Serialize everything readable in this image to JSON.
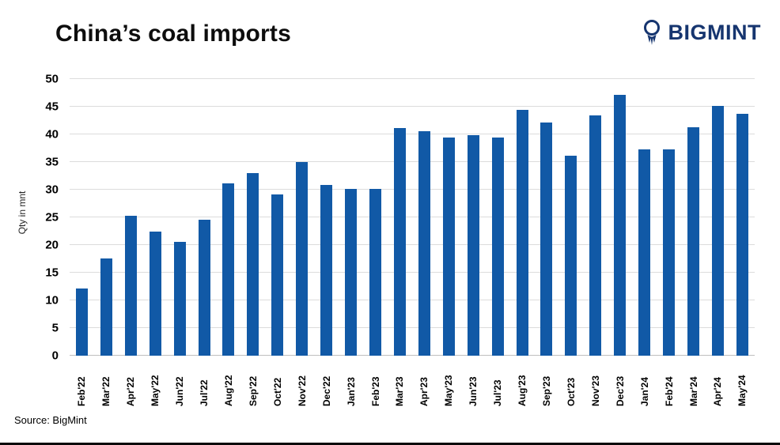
{
  "header": {
    "title": "China’s coal imports",
    "logo_text": "BIGMINT",
    "logo_color": "#16356F"
  },
  "footer": {
    "source": "Source: BigMint"
  },
  "chart_data": {
    "type": "bar",
    "title": "China’s coal imports",
    "xlabel": "",
    "ylabel": "Qty in mnt",
    "ylim": [
      0,
      50
    ],
    "ytick_step": 5,
    "grid": true,
    "legend": false,
    "bar_color": "#1159A6",
    "categories": [
      "Feb'22",
      "Mar'22",
      "Apr'22",
      "May'22",
      "Jun'22",
      "Jul'22",
      "Aug'22",
      "Sep'22",
      "Oct'22",
      "Nov'22",
      "Dec'22",
      "Jan'23",
      "Feb'23",
      "Mar'23",
      "Apr'23",
      "May'23",
      "Jun'23",
      "Jul'23",
      "Aug'23",
      "Sep'23",
      "Oct'23",
      "Nov'23",
      "Dec'23",
      "Jan'24",
      "Feb'24",
      "Mar'24",
      "Apr'24",
      "May'24"
    ],
    "values": [
      12.1,
      17.6,
      25.3,
      22.5,
      20.6,
      24.6,
      31.2,
      33.0,
      29.1,
      35.0,
      30.9,
      30.2,
      30.2,
      41.2,
      40.6,
      39.5,
      39.8,
      39.4,
      44.4,
      42.2,
      36.1,
      43.5,
      47.2,
      37.3,
      37.3,
      41.3,
      45.2,
      43.7
    ]
  }
}
